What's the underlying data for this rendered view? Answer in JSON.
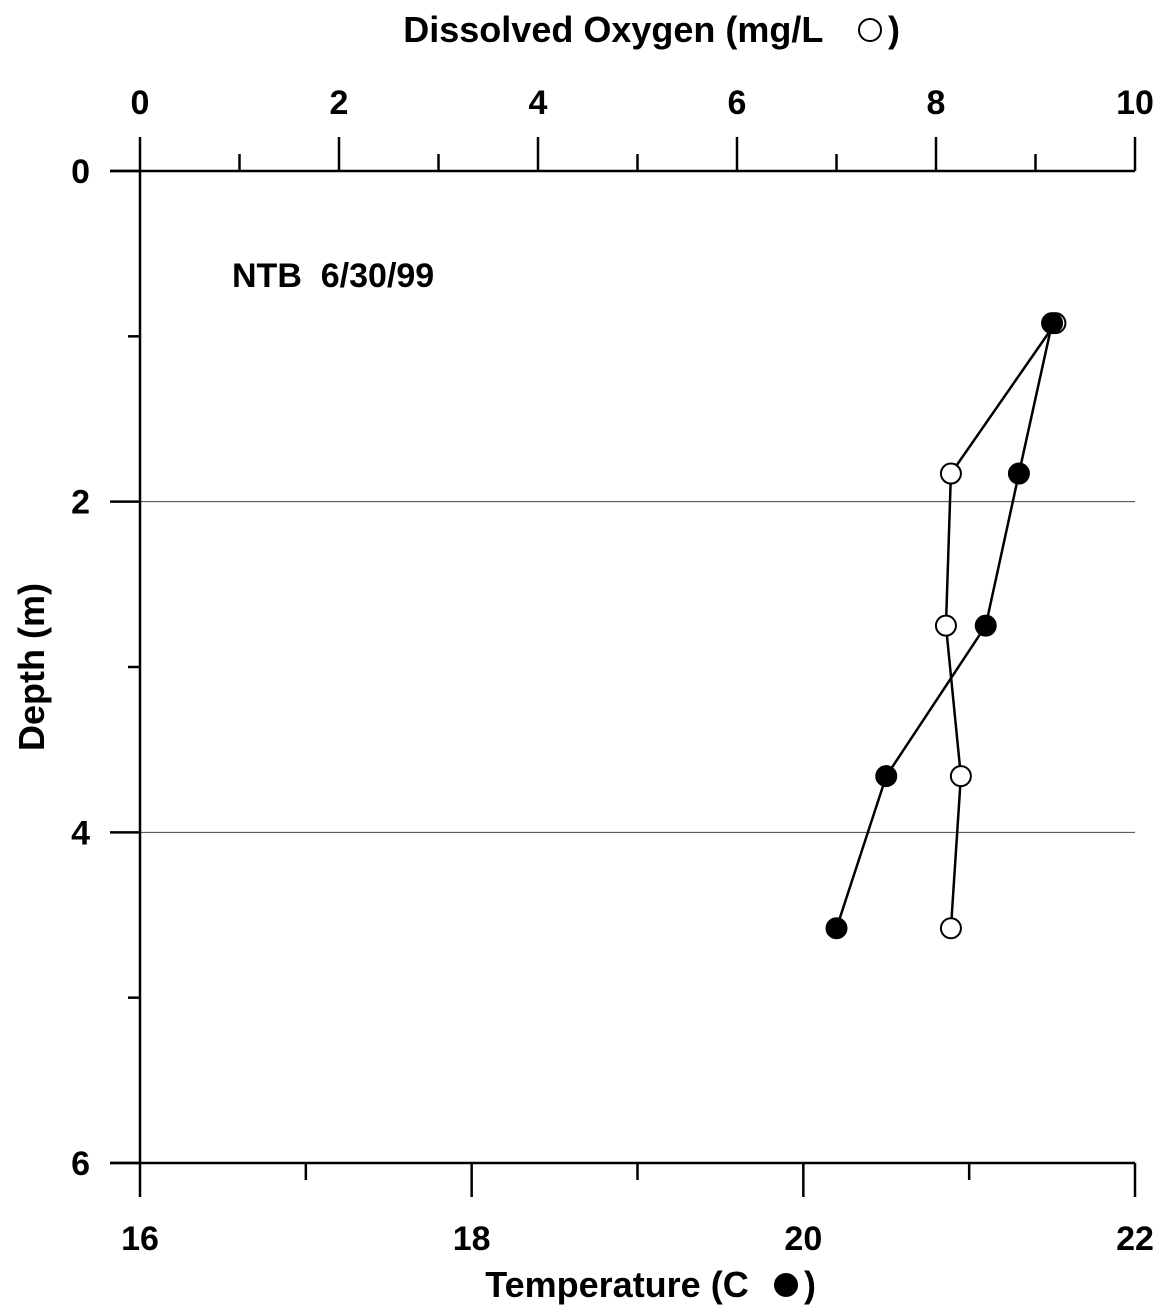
{
  "chart_data": {
    "type": "scatter",
    "annotation": "NTB  6/30/99",
    "top_axis": {
      "label": "Dissolved Oxygen (mg/L",
      "label_close": ")",
      "marker": "open-circle",
      "range": [
        0,
        10
      ],
      "major_ticks": [
        0,
        2,
        4,
        6,
        8,
        10
      ],
      "minor_ticks": [
        1,
        3,
        5,
        7,
        9
      ]
    },
    "bottom_axis": {
      "label": "Temperature (C",
      "label_close": ")",
      "marker": "filled-circle",
      "range": [
        16,
        22
      ],
      "major_ticks": [
        16,
        18,
        20,
        22
      ],
      "minor_ticks": [
        17,
        19,
        21
      ]
    },
    "y_axis": {
      "label": "Depth (m)",
      "range": [
        0,
        6
      ],
      "inverted": true,
      "major_ticks": [
        0,
        2,
        4,
        6
      ],
      "minor_ticks": [
        1,
        3,
        5
      ],
      "grid_lines": [
        2,
        4
      ]
    },
    "series": [
      {
        "variable": "dissolved_oxygen",
        "axis": "top",
        "marker": "open-circle",
        "points": [
          {
            "x": 9.2,
            "depth": 0.92
          },
          {
            "x": 8.15,
            "depth": 1.83
          },
          {
            "x": 8.1,
            "depth": 2.75
          },
          {
            "x": 8.25,
            "depth": 3.66
          },
          {
            "x": 8.15,
            "depth": 4.58
          }
        ]
      },
      {
        "variable": "temperature",
        "axis": "bottom",
        "marker": "filled-circle",
        "points": [
          {
            "x": 21.5,
            "depth": 0.92
          },
          {
            "x": 21.3,
            "depth": 1.83
          },
          {
            "x": 21.1,
            "depth": 2.75
          },
          {
            "x": 20.5,
            "depth": 3.66
          },
          {
            "x": 20.2,
            "depth": 4.58
          }
        ]
      }
    ]
  }
}
